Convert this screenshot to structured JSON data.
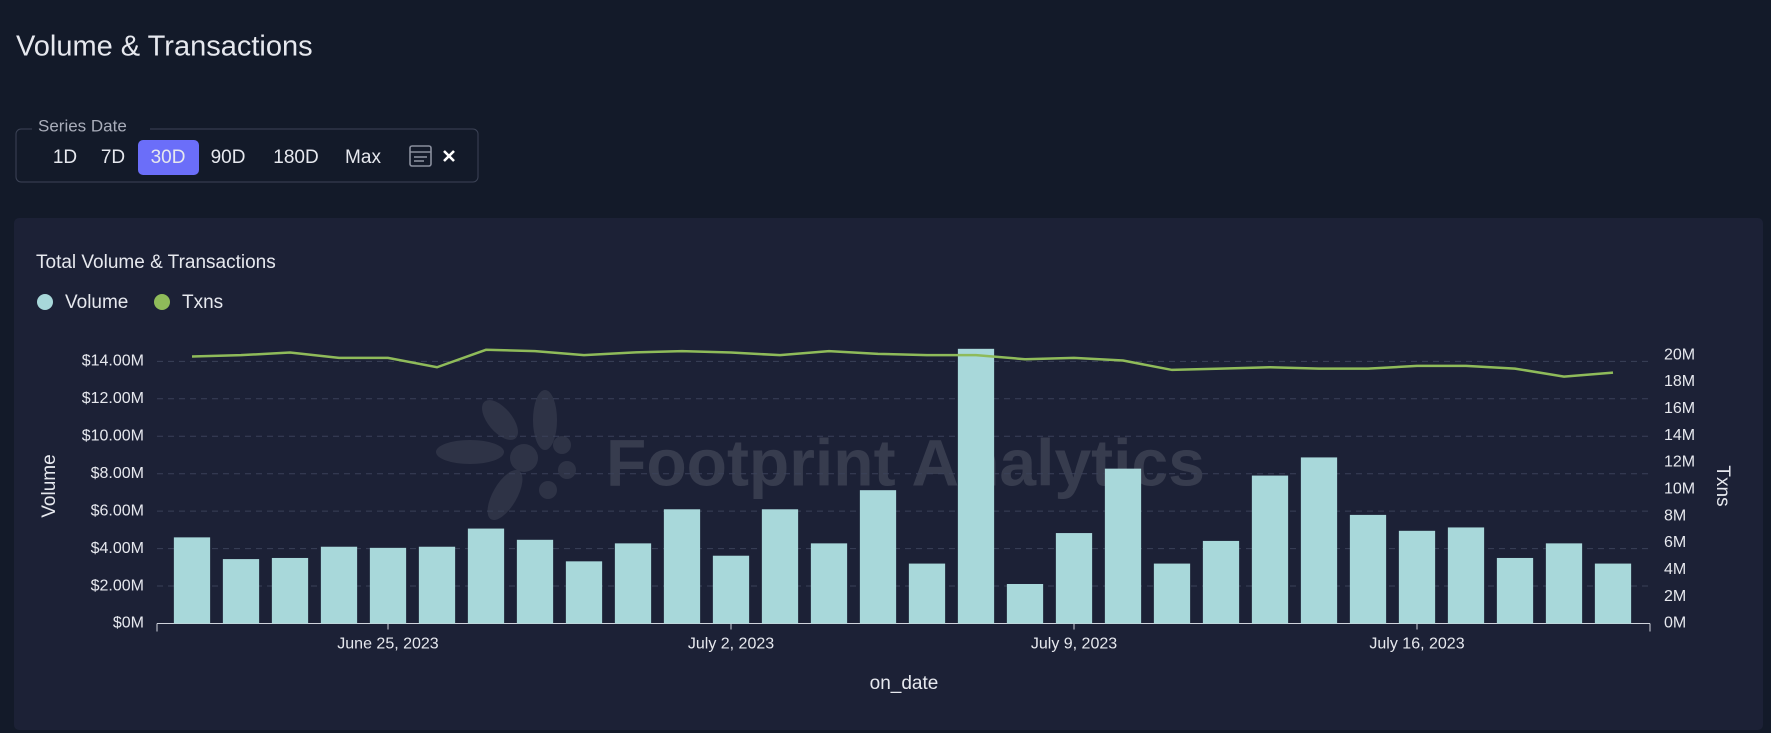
{
  "page": {
    "title": "Volume & Transactions",
    "filter_label": "Series Date",
    "filter_options": [
      "1D",
      "7D",
      "30D",
      "90D",
      "180D",
      "Max"
    ],
    "selected_option": "30D",
    "watermark": "Footprint Analytics"
  },
  "chart_data": {
    "type": "bar_line",
    "title": "Total Volume & Transactions",
    "x_label": "on_date",
    "y_label": "Volume",
    "y2_label": "Txns",
    "categories": [
      null,
      null,
      null,
      null,
      "June 25, 2023",
      null,
      null,
      null,
      null,
      null,
      null,
      "July 2, 2023",
      null,
      null,
      null,
      null,
      null,
      null,
      "July 9, 2023",
      null,
      null,
      null,
      null,
      null,
      null,
      "July 16, 2023",
      null,
      null,
      null,
      null
    ],
    "series": [
      {
        "name": "Volume",
        "type": "bar",
        "color": "#a8d8da",
        "values": [
          4600000,
          3440000,
          3500000,
          4100000,
          4040000,
          4100000,
          5070000,
          4470000,
          3320000,
          4280000,
          6100000,
          3620000,
          6100000,
          4280000,
          7120000,
          3200000,
          14670000,
          2110000,
          4830000,
          8270000,
          3200000,
          4410000,
          7900000,
          8870000,
          5800000,
          4950000,
          5130000,
          3500000,
          4280000,
          3200000
        ]
      },
      {
        "name": "Txns",
        "type": "line",
        "axis": "y2",
        "color": "#8fbb5a",
        "values": [
          19900000,
          20000000,
          20200000,
          19800000,
          19800000,
          19100000,
          20400000,
          20300000,
          20000000,
          20200000,
          20300000,
          20200000,
          20000000,
          20300000,
          20100000,
          20000000,
          20000000,
          19700000,
          19800000,
          19600000,
          18900000,
          19000000,
          19100000,
          19000000,
          19000000,
          19200000,
          19200000,
          19000000,
          18400000,
          18700000
        ]
      }
    ],
    "ylim": [
      0,
      14660000
    ],
    "yticks": [
      {
        "value": 0,
        "label": "$0M"
      },
      {
        "value": 2000000,
        "label": "$2.00M"
      },
      {
        "value": 4000000,
        "label": "$4.00M"
      },
      {
        "value": 6000000,
        "label": "$6.00M"
      },
      {
        "value": 8000000,
        "label": "$8.00M"
      },
      {
        "value": 10000000,
        "label": "$10.00M"
      },
      {
        "value": 12000000,
        "label": "$12.00M"
      },
      {
        "value": 14000000,
        "label": "$14.00M"
      }
    ],
    "y2lim": [
      0,
      20460000
    ],
    "y2ticks": [
      {
        "value": 0,
        "label": "0M"
      },
      {
        "value": 2000000,
        "label": "2M"
      },
      {
        "value": 4000000,
        "label": "4M"
      },
      {
        "value": 6000000,
        "label": "6M"
      },
      {
        "value": 8000000,
        "label": "8M"
      },
      {
        "value": 10000000,
        "label": "10M"
      },
      {
        "value": 12000000,
        "label": "12M"
      },
      {
        "value": 14000000,
        "label": "14M"
      },
      {
        "value": 16000000,
        "label": "16M"
      },
      {
        "value": 18000000,
        "label": "18M"
      },
      {
        "value": 20000000,
        "label": "20M"
      }
    ],
    "grid": true,
    "legend": "top-left"
  }
}
